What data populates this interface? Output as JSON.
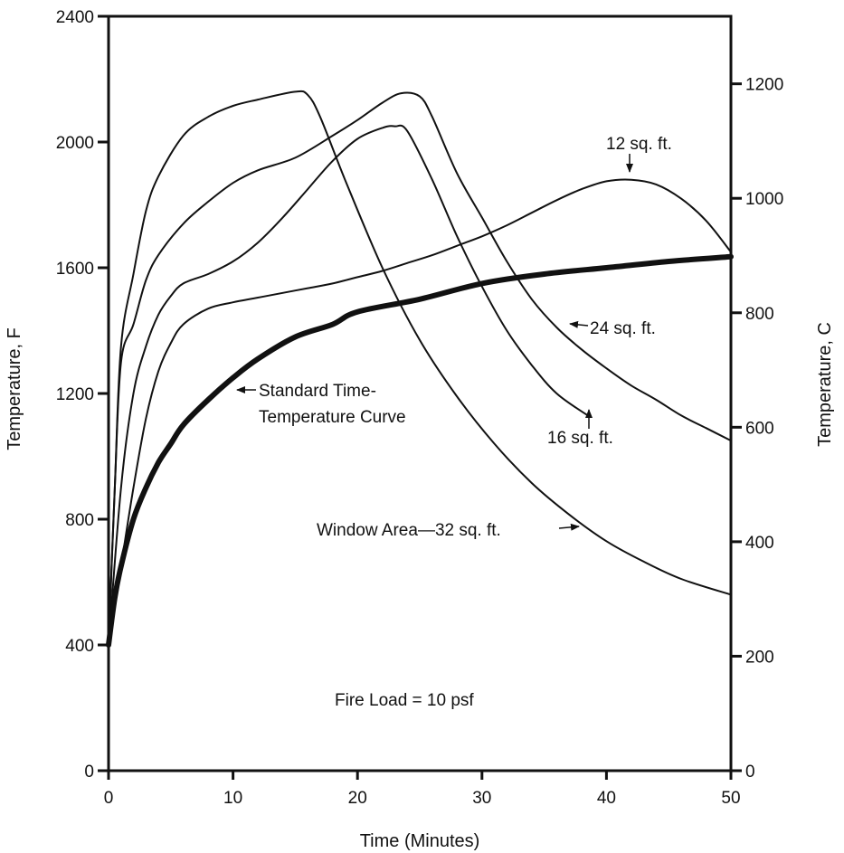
{
  "chart_data": {
    "type": "line",
    "title": "",
    "xlabel": "Time (Minutes)",
    "ylabel": "Temperature, F",
    "ylabel_right": "Temperature, C",
    "xlim": [
      0,
      50
    ],
    "ylim": [
      0,
      2400
    ],
    "ylim_right": [
      0,
      1318
    ],
    "x_ticks": [
      0,
      10,
      20,
      30,
      40,
      50
    ],
    "y_ticks": [
      0,
      400,
      800,
      1200,
      1600,
      2000,
      2400
    ],
    "y_ticks_right": [
      0,
      200,
      400,
      600,
      800,
      1000,
      1200
    ],
    "grid": false,
    "colors": {
      "line": "#111111",
      "background": "#ffffff"
    },
    "series": [
      {
        "name": "Window Area—32 sq. ft.",
        "x": [
          0,
          0.5,
          1,
          2,
          3,
          4,
          6,
          8,
          10,
          12,
          15,
          16,
          17,
          19,
          22,
          25,
          28,
          31,
          34,
          37,
          40,
          43,
          46,
          50
        ],
        "y": [
          400,
          900,
          1350,
          1580,
          1780,
          1890,
          2020,
          2080,
          2115,
          2135,
          2160,
          2150,
          2080,
          1880,
          1600,
          1370,
          1190,
          1040,
          915,
          815,
          730,
          665,
          610,
          560
        ]
      },
      {
        "name": "24 sq. ft.",
        "x": [
          0,
          0.5,
          1,
          2,
          3,
          4,
          6,
          8,
          10,
          12,
          15,
          18,
          20,
          22,
          23.5,
          25,
          26,
          28,
          30,
          32,
          34,
          36,
          38,
          40,
          42,
          44,
          46,
          48,
          50
        ],
        "y": [
          400,
          900,
          1300,
          1420,
          1560,
          1640,
          1740,
          1810,
          1870,
          1910,
          1950,
          2020,
          2070,
          2125,
          2155,
          2145,
          2080,
          1900,
          1760,
          1620,
          1500,
          1410,
          1340,
          1280,
          1225,
          1180,
          1130,
          1090,
          1050
        ]
      },
      {
        "name": "16 sq. ft.",
        "x": [
          0,
          1,
          2,
          3,
          4,
          5,
          6,
          8,
          10,
          12,
          14,
          16,
          18,
          20,
          22,
          23,
          24,
          26,
          28,
          30,
          32,
          34,
          36,
          38.5
        ],
        "y": [
          400,
          900,
          1200,
          1350,
          1450,
          1510,
          1550,
          1580,
          1620,
          1680,
          1760,
          1850,
          1940,
          2010,
          2045,
          2050,
          2035,
          1880,
          1700,
          1540,
          1400,
          1290,
          1200,
          1130
        ]
      },
      {
        "name": "12 sq. ft.",
        "x": [
          0,
          1,
          2,
          3,
          4,
          5,
          6,
          8,
          10,
          12,
          14,
          16,
          18,
          20,
          22,
          24,
          26,
          28,
          30,
          32,
          34,
          36,
          38,
          40,
          42,
          44,
          46,
          48,
          50
        ],
        "y": [
          400,
          650,
          900,
          1120,
          1270,
          1360,
          1420,
          1470,
          1490,
          1505,
          1520,
          1535,
          1550,
          1570,
          1590,
          1615,
          1640,
          1670,
          1700,
          1735,
          1775,
          1815,
          1850,
          1875,
          1880,
          1865,
          1820,
          1750,
          1650
        ]
      },
      {
        "name": "Standard Time-Temperature Curve",
        "x": [
          0,
          0.5,
          1,
          2,
          3,
          4,
          5,
          6,
          8,
          10,
          12,
          15,
          18,
          20,
          25,
          30,
          35,
          40,
          45,
          50
        ],
        "y": [
          400,
          550,
          650,
          800,
          900,
          980,
          1040,
          1100,
          1180,
          1250,
          1310,
          1380,
          1420,
          1460,
          1500,
          1550,
          1580,
          1600,
          1620,
          1635
        ]
      }
    ],
    "annotations": [
      {
        "text": "12 sq. ft.",
        "target": [
          42,
          1880
        ]
      },
      {
        "text": "24 sq. ft.",
        "target": [
          37,
          1390
        ]
      },
      {
        "text": "16 sq. ft.",
        "target": [
          38.5,
          1140
        ]
      },
      {
        "text": "Standard Time-",
        "target": [
          10,
          1240
        ]
      },
      {
        "text": "Temperature Curve"
      },
      {
        "text": "Window Area—32 sq. ft.",
        "target": [
          37.5,
          800
        ]
      },
      {
        "text": "Fire Load = 10 psf"
      }
    ]
  }
}
